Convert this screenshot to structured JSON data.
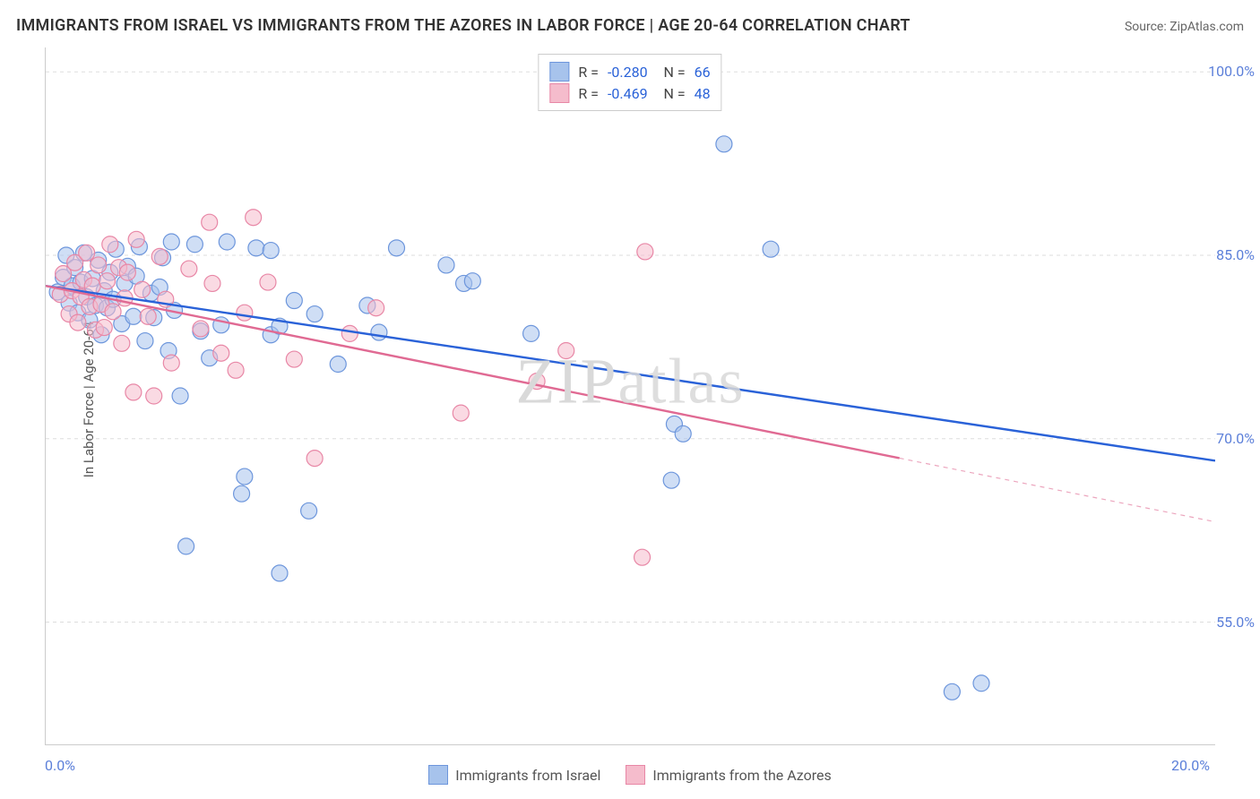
{
  "title": "IMMIGRANTS FROM ISRAEL VS IMMIGRANTS FROM THE AZORES IN LABOR FORCE | AGE 20-64 CORRELATION CHART",
  "source": "Source: ZipAtlas.com",
  "ylabel": "In Labor Force | Age 20-64",
  "watermark": "ZIPatlas",
  "chart": {
    "type": "scatter",
    "background_color": "#ffffff",
    "grid_color": "#dddddd",
    "grid_dash": "4 4",
    "tick_color": "#cccccc",
    "axis_label_color": "#5b7fd9",
    "x_range": [
      0.0,
      20.0
    ],
    "y_range": [
      45.0,
      102.0
    ],
    "x_ticks": [
      0.0,
      2.2,
      4.4,
      6.6,
      8.8,
      11.0,
      13.2,
      15.4,
      17.6,
      20.0
    ],
    "x_tick_labels_shown": {
      "0": "0.0%",
      "9": "20.0%"
    },
    "y_ticks": [
      55.0,
      70.0,
      85.0,
      100.0
    ],
    "y_tick_labels": [
      "55.0%",
      "70.0%",
      "85.0%",
      "100.0%"
    ],
    "marker_radius": 9,
    "marker_opacity": 0.55,
    "line_width": 2.4,
    "series": [
      {
        "id": "israel",
        "label": "Immigrants from Israel",
        "fill": "#a7c3ec",
        "stroke": "#6d96dc",
        "line_color": "#2a62d8",
        "r_value": "-0.280",
        "n_value": "66",
        "trend": {
          "x1": 0.0,
          "y1": 82.5,
          "x2": 20.0,
          "y2": 68.2,
          "solid_until_x": 20.0
        },
        "points": [
          [
            0.2,
            82.0
          ],
          [
            0.3,
            83.2
          ],
          [
            0.35,
            85.0
          ],
          [
            0.4,
            81.1
          ],
          [
            0.45,
            82.5
          ],
          [
            0.5,
            84.0
          ],
          [
            0.55,
            80.3
          ],
          [
            0.6,
            82.8
          ],
          [
            0.65,
            85.2
          ],
          [
            0.7,
            81.6
          ],
          [
            0.75,
            79.7
          ],
          [
            0.8,
            83.1
          ],
          [
            0.85,
            80.9
          ],
          [
            0.9,
            84.6
          ],
          [
            0.95,
            78.5
          ],
          [
            1.0,
            82.1
          ],
          [
            1.05,
            80.7
          ],
          [
            1.1,
            83.6
          ],
          [
            1.15,
            81.4
          ],
          [
            1.2,
            85.5
          ],
          [
            1.3,
            79.4
          ],
          [
            1.35,
            82.7
          ],
          [
            1.4,
            84.1
          ],
          [
            1.5,
            80.0
          ],
          [
            1.55,
            83.3
          ],
          [
            1.6,
            85.7
          ],
          [
            1.7,
            78.0
          ],
          [
            1.8,
            81.9
          ],
          [
            1.85,
            79.9
          ],
          [
            1.95,
            82.4
          ],
          [
            2.0,
            84.8
          ],
          [
            2.1,
            77.2
          ],
          [
            2.15,
            86.1
          ],
          [
            2.2,
            80.5
          ],
          [
            2.3,
            73.5
          ],
          [
            2.4,
            61.2
          ],
          [
            2.55,
            85.9
          ],
          [
            2.65,
            78.8
          ],
          [
            2.8,
            76.6
          ],
          [
            3.0,
            79.3
          ],
          [
            3.1,
            86.1
          ],
          [
            3.35,
            65.5
          ],
          [
            3.4,
            66.9
          ],
          [
            3.6,
            85.6
          ],
          [
            3.85,
            78.5
          ],
          [
            3.85,
            85.4
          ],
          [
            4.0,
            59.0
          ],
          [
            4.0,
            79.2
          ],
          [
            4.25,
            81.3
          ],
          [
            4.5,
            64.1
          ],
          [
            4.6,
            80.2
          ],
          [
            5.0,
            76.1
          ],
          [
            5.5,
            80.9
          ],
          [
            5.7,
            78.7
          ],
          [
            6.0,
            85.6
          ],
          [
            6.85,
            84.2
          ],
          [
            7.15,
            82.7
          ],
          [
            7.3,
            82.9
          ],
          [
            8.3,
            78.6
          ],
          [
            10.7,
            66.6
          ],
          [
            10.75,
            71.2
          ],
          [
            10.9,
            70.4
          ],
          [
            11.6,
            94.1
          ],
          [
            12.4,
            85.5
          ],
          [
            15.5,
            49.3
          ],
          [
            16.0,
            50.0
          ]
        ]
      },
      {
        "id": "azores",
        "label": "Immigrants from the Azores",
        "fill": "#f5bccc",
        "stroke": "#e887a6",
        "line_color": "#e06a93",
        "r_value": "-0.469",
        "n_value": "48",
        "trend": {
          "x1": 0.0,
          "y1": 82.5,
          "x2": 20.0,
          "y2": 63.2,
          "solid_until_x": 14.6
        },
        "points": [
          [
            0.25,
            81.8
          ],
          [
            0.3,
            83.5
          ],
          [
            0.4,
            80.2
          ],
          [
            0.45,
            82.1
          ],
          [
            0.5,
            84.4
          ],
          [
            0.55,
            79.5
          ],
          [
            0.6,
            81.6
          ],
          [
            0.65,
            83.0
          ],
          [
            0.7,
            85.2
          ],
          [
            0.75,
            80.8
          ],
          [
            0.8,
            82.5
          ],
          [
            0.85,
            78.9
          ],
          [
            0.9,
            84.2
          ],
          [
            0.95,
            81.0
          ],
          [
            1.0,
            79.1
          ],
          [
            1.05,
            82.9
          ],
          [
            1.1,
            85.9
          ],
          [
            1.15,
            80.4
          ],
          [
            1.25,
            84.0
          ],
          [
            1.3,
            77.8
          ],
          [
            1.35,
            81.5
          ],
          [
            1.4,
            83.6
          ],
          [
            1.5,
            73.8
          ],
          [
            1.55,
            86.3
          ],
          [
            1.65,
            82.2
          ],
          [
            1.75,
            80.0
          ],
          [
            1.85,
            73.5
          ],
          [
            1.95,
            84.9
          ],
          [
            2.05,
            81.4
          ],
          [
            2.15,
            76.2
          ],
          [
            2.45,
            83.9
          ],
          [
            2.65,
            79.0
          ],
          [
            2.8,
            87.7
          ],
          [
            2.85,
            82.7
          ],
          [
            3.0,
            77.0
          ],
          [
            3.25,
            75.6
          ],
          [
            3.4,
            80.3
          ],
          [
            3.55,
            88.1
          ],
          [
            3.8,
            82.8
          ],
          [
            4.25,
            76.5
          ],
          [
            4.6,
            68.4
          ],
          [
            5.2,
            78.6
          ],
          [
            5.65,
            80.7
          ],
          [
            7.1,
            72.1
          ],
          [
            8.4,
            74.7
          ],
          [
            8.9,
            77.2
          ],
          [
            10.2,
            60.3
          ],
          [
            10.25,
            85.3
          ]
        ]
      }
    ]
  }
}
